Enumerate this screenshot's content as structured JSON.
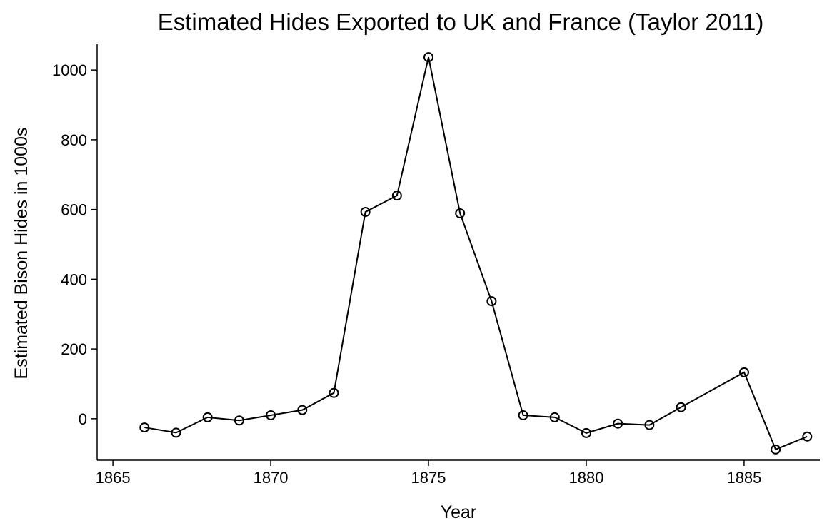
{
  "chart_data": {
    "type": "line",
    "title": "Estimated Hides Exported to UK and France (Taylor 2011)",
    "x_label": "Year",
    "y_label": "Estimated Bison Hides in 1000s",
    "x": [
      1866,
      1867,
      1868,
      1869,
      1870,
      1871,
      1872,
      1873,
      1874,
      1875,
      1876,
      1877,
      1878,
      1879,
      1880,
      1881,
      1882,
      1883,
      1885,
      1886,
      1887
    ],
    "series": [
      {
        "name": "Estimated hides",
        "color": "#000000",
        "values": [
          -25,
          -40,
          4,
          -5,
          10,
          25,
          74,
          593,
          640,
          1037,
          589,
          337,
          10,
          4,
          -41,
          -14,
          -18,
          33,
          133,
          -88,
          -51
        ]
      }
    ],
    "xlim": [
      1864.5,
      1887.4
    ],
    "xticks": [
      1865,
      1870,
      1875,
      1880,
      1885
    ],
    "ylim": [
      -119,
      1074
    ],
    "yticks": [
      0,
      200,
      400,
      600,
      800,
      1000
    ],
    "grid": false,
    "markers": "hollow-circle"
  }
}
